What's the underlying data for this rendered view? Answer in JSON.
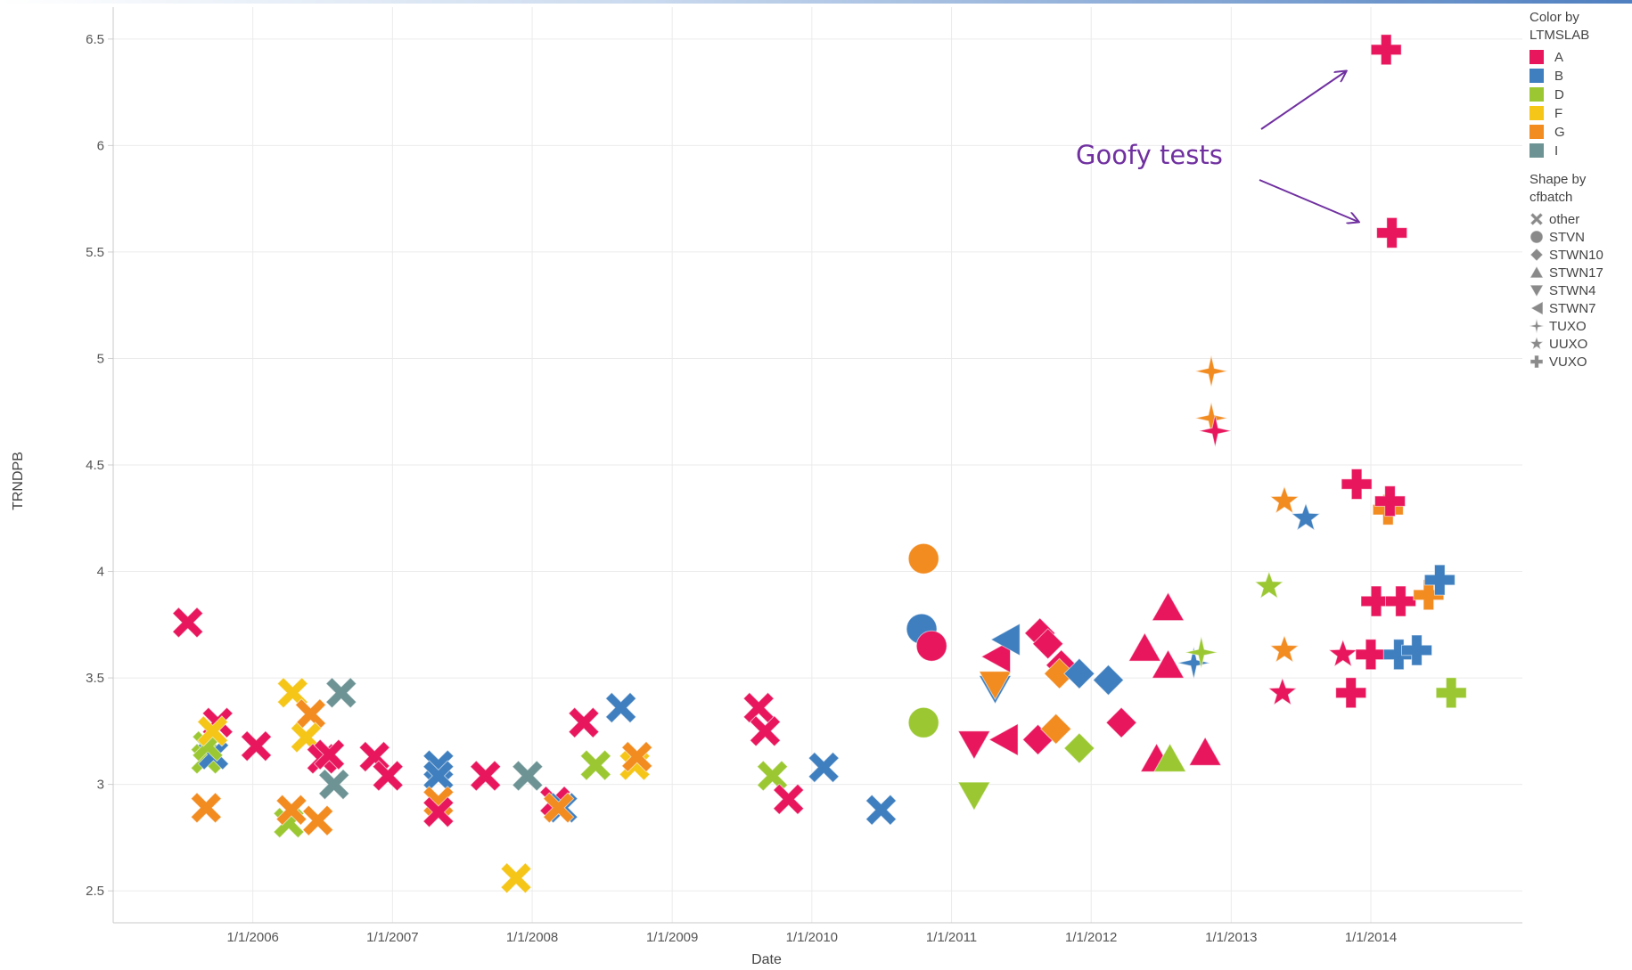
{
  "chart_data": {
    "type": "scatter",
    "xlabel": "Date",
    "ylabel": "TRNDPB",
    "xlim": [
      "2005-01-01",
      "2015-02-01"
    ],
    "ylim": [
      2.35,
      6.65
    ],
    "x_ticks": [
      "1/1/2006",
      "1/1/2007",
      "1/1/2008",
      "1/1/2009",
      "1/1/2010",
      "1/1/2011",
      "1/1/2012",
      "1/1/2013",
      "1/1/2014"
    ],
    "y_ticks": [
      "2.5",
      "3",
      "3.5",
      "4",
      "4.5",
      "5",
      "5.5",
      "6",
      "6.5"
    ],
    "grid": true,
    "color_legend": {
      "title": "Color by LTMSLAB",
      "items": [
        {
          "label": "A",
          "color": "#e8175d"
        },
        {
          "label": "B",
          "color": "#3f7fbf"
        },
        {
          "label": "D",
          "color": "#9bc832"
        },
        {
          "label": "F",
          "color": "#f5c518"
        },
        {
          "label": "G",
          "color": "#f28b20"
        },
        {
          "label": "I",
          "color": "#6d9394"
        }
      ]
    },
    "shape_legend": {
      "title": "Shape by cfbatch",
      "items": [
        {
          "label": "other",
          "shape": "x"
        },
        {
          "label": "STVN",
          "shape": "circle"
        },
        {
          "label": "STWN10",
          "shape": "diamond"
        },
        {
          "label": "STWN17",
          "shape": "triangle-up"
        },
        {
          "label": "STWN4",
          "shape": "triangle-down"
        },
        {
          "label": "STWN7",
          "shape": "triangle-left"
        },
        {
          "label": "TUXO",
          "shape": "star4"
        },
        {
          "label": "UUXO",
          "shape": "star"
        },
        {
          "label": "VUXO",
          "shape": "plus"
        }
      ]
    },
    "points": [
      {
        "x": "2005-07-15",
        "y": 3.76,
        "lab": "A",
        "batch": "other"
      },
      {
        "x": "2005-09-01",
        "y": 3.12,
        "lab": "D",
        "batch": "other"
      },
      {
        "x": "2005-09-20",
        "y": 3.14,
        "lab": "B",
        "batch": "other"
      },
      {
        "x": "2005-09-05",
        "y": 3.18,
        "lab": "D",
        "batch": "other"
      },
      {
        "x": "2005-10-01",
        "y": 3.29,
        "lab": "A",
        "batch": "other"
      },
      {
        "x": "2005-09-18",
        "y": 3.25,
        "lab": "F",
        "batch": "other"
      },
      {
        "x": "2005-09-01",
        "y": 2.89,
        "lab": "G",
        "batch": "other"
      },
      {
        "x": "2006-01-10",
        "y": 3.18,
        "lab": "A",
        "batch": "other"
      },
      {
        "x": "2006-04-15",
        "y": 3.43,
        "lab": "F",
        "batch": "other"
      },
      {
        "x": "2006-06-01",
        "y": 3.33,
        "lab": "G",
        "batch": "other"
      },
      {
        "x": "2006-05-20",
        "y": 3.22,
        "lab": "F",
        "batch": "other"
      },
      {
        "x": "2006-07-01",
        "y": 3.12,
        "lab": "A",
        "batch": "other"
      },
      {
        "x": "2006-07-20",
        "y": 3.14,
        "lab": "A",
        "batch": "other"
      },
      {
        "x": "2006-08-01",
        "y": 3.0,
        "lab": "I",
        "batch": "other"
      },
      {
        "x": "2006-08-20",
        "y": 3.43,
        "lab": "I",
        "batch": "other"
      },
      {
        "x": "2006-04-05",
        "y": 2.82,
        "lab": "D",
        "batch": "other"
      },
      {
        "x": "2006-04-12",
        "y": 2.88,
        "lab": "G",
        "batch": "other"
      },
      {
        "x": "2006-06-20",
        "y": 2.83,
        "lab": "G",
        "batch": "other"
      },
      {
        "x": "2006-11-15",
        "y": 3.13,
        "lab": "A",
        "batch": "other"
      },
      {
        "x": "2006-12-20",
        "y": 3.04,
        "lab": "A",
        "batch": "other"
      },
      {
        "x": "2007-05-01",
        "y": 3.09,
        "lab": "B",
        "batch": "other"
      },
      {
        "x": "2007-05-01",
        "y": 3.04,
        "lab": "B",
        "batch": "other"
      },
      {
        "x": "2007-05-01",
        "y": 2.92,
        "lab": "G",
        "batch": "other"
      },
      {
        "x": "2007-05-01",
        "y": 2.87,
        "lab": "A",
        "batch": "other"
      },
      {
        "x": "2007-09-01",
        "y": 3.04,
        "lab": "A",
        "batch": "other"
      },
      {
        "x": "2007-11-20",
        "y": 2.56,
        "lab": "F",
        "batch": "other"
      },
      {
        "x": "2007-12-20",
        "y": 3.04,
        "lab": "I",
        "batch": "other"
      },
      {
        "x": "2008-03-01",
        "y": 2.92,
        "lab": "A",
        "batch": "other"
      },
      {
        "x": "2008-03-20",
        "y": 2.89,
        "lab": "B",
        "batch": "other"
      },
      {
        "x": "2008-03-10",
        "y": 2.89,
        "lab": "G",
        "batch": "other"
      },
      {
        "x": "2008-05-15",
        "y": 3.29,
        "lab": "A",
        "batch": "other"
      },
      {
        "x": "2008-06-15",
        "y": 3.09,
        "lab": "D",
        "batch": "other"
      },
      {
        "x": "2008-08-20",
        "y": 3.36,
        "lab": "B",
        "batch": "other"
      },
      {
        "x": "2008-09-25",
        "y": 3.09,
        "lab": "F",
        "batch": "other"
      },
      {
        "x": "2008-10-01",
        "y": 3.13,
        "lab": "G",
        "batch": "other"
      },
      {
        "x": "2009-08-15",
        "y": 3.36,
        "lab": "A",
        "batch": "other"
      },
      {
        "x": "2009-09-01",
        "y": 3.25,
        "lab": "A",
        "batch": "other"
      },
      {
        "x": "2009-09-20",
        "y": 3.04,
        "lab": "D",
        "batch": "other"
      },
      {
        "x": "2009-11-01",
        "y": 2.93,
        "lab": "A",
        "batch": "other"
      },
      {
        "x": "2010-02-01",
        "y": 3.08,
        "lab": "B",
        "batch": "other"
      },
      {
        "x": "2010-07-01",
        "y": 2.88,
        "lab": "B",
        "batch": "other"
      },
      {
        "x": "2010-10-20",
        "y": 4.06,
        "lab": "G",
        "batch": "STVN"
      },
      {
        "x": "2010-10-15",
        "y": 3.73,
        "lab": "B",
        "batch": "STVN"
      },
      {
        "x": "2010-11-10",
        "y": 3.65,
        "lab": "A",
        "batch": "STVN"
      },
      {
        "x": "2010-10-20",
        "y": 3.29,
        "lab": "D",
        "batch": "STVN"
      },
      {
        "x": "2011-03-01",
        "y": 3.19,
        "lab": "A",
        "batch": "STWN4"
      },
      {
        "x": "2011-03-01",
        "y": 2.95,
        "lab": "D",
        "batch": "STWN4"
      },
      {
        "x": "2011-04-25",
        "y": 3.45,
        "lab": "B",
        "batch": "STWN4"
      },
      {
        "x": "2011-04-25",
        "y": 3.47,
        "lab": "G",
        "batch": "STWN4"
      },
      {
        "x": "2011-04-25",
        "y": 3.6,
        "lab": "A",
        "batch": "STWN7"
      },
      {
        "x": "2011-05-20",
        "y": 3.68,
        "lab": "B",
        "batch": "STWN7"
      },
      {
        "x": "2011-05-15",
        "y": 3.21,
        "lab": "A",
        "batch": "STWN7"
      },
      {
        "x": "2011-08-15",
        "y": 3.21,
        "lab": "A",
        "batch": "STWN10"
      },
      {
        "x": "2011-08-20",
        "y": 3.71,
        "lab": "A",
        "batch": "STWN10"
      },
      {
        "x": "2011-09-10",
        "y": 3.66,
        "lab": "A",
        "batch": "STWN10"
      },
      {
        "x": "2011-10-15",
        "y": 3.56,
        "lab": "A",
        "batch": "STWN10"
      },
      {
        "x": "2011-10-01",
        "y": 3.26,
        "lab": "G",
        "batch": "STWN10"
      },
      {
        "x": "2011-10-10",
        "y": 3.52,
        "lab": "G",
        "batch": "STWN10"
      },
      {
        "x": "2011-12-01",
        "y": 3.52,
        "lab": "B",
        "batch": "STWN10"
      },
      {
        "x": "2011-12-01",
        "y": 3.17,
        "lab": "D",
        "batch": "STWN10"
      },
      {
        "x": "2012-02-15",
        "y": 3.49,
        "lab": "B",
        "batch": "STWN10"
      },
      {
        "x": "2012-03-20",
        "y": 3.29,
        "lab": "A",
        "batch": "STWN10"
      },
      {
        "x": "2012-05-20",
        "y": 3.64,
        "lab": "A",
        "batch": "STWN17"
      },
      {
        "x": "2012-07-20",
        "y": 3.83,
        "lab": "A",
        "batch": "STWN17"
      },
      {
        "x": "2012-07-20",
        "y": 3.56,
        "lab": "A",
        "batch": "STWN17"
      },
      {
        "x": "2012-06-20",
        "y": 3.12,
        "lab": "A",
        "batch": "STWN17"
      },
      {
        "x": "2012-07-25",
        "y": 3.12,
        "lab": "D",
        "batch": "STWN17"
      },
      {
        "x": "2012-10-25",
        "y": 3.15,
        "lab": "A",
        "batch": "STWN17"
      },
      {
        "x": "2012-09-25",
        "y": 3.57,
        "lab": "B",
        "batch": "TUXO"
      },
      {
        "x": "2012-10-15",
        "y": 3.62,
        "lab": "D",
        "batch": "TUXO"
      },
      {
        "x": "2012-11-10",
        "y": 4.94,
        "lab": "G",
        "batch": "TUXO"
      },
      {
        "x": "2012-11-10",
        "y": 4.72,
        "lab": "G",
        "batch": "TUXO"
      },
      {
        "x": "2012-11-20",
        "y": 4.66,
        "lab": "A",
        "batch": "TUXO"
      },
      {
        "x": "2013-04-10",
        "y": 3.93,
        "lab": "D",
        "batch": "UUXO"
      },
      {
        "x": "2013-05-20",
        "y": 4.33,
        "lab": "G",
        "batch": "UUXO"
      },
      {
        "x": "2013-07-15",
        "y": 4.25,
        "lab": "B",
        "batch": "UUXO"
      },
      {
        "x": "2013-05-20",
        "y": 3.63,
        "lab": "G",
        "batch": "UUXO"
      },
      {
        "x": "2013-05-15",
        "y": 3.43,
        "lab": "A",
        "batch": "UUXO"
      },
      {
        "x": "2013-10-20",
        "y": 3.61,
        "lab": "A",
        "batch": "UUXO"
      },
      {
        "x": "2013-11-25",
        "y": 4.41,
        "lab": "A",
        "batch": "VUXO"
      },
      {
        "x": "2013-11-10",
        "y": 3.43,
        "lab": "A",
        "batch": "VUXO"
      },
      {
        "x": "2014-01-01",
        "y": 3.61,
        "lab": "A",
        "batch": "VUXO"
      },
      {
        "x": "2014-01-15",
        "y": 3.86,
        "lab": "A",
        "batch": "VUXO"
      },
      {
        "x": "2014-02-15",
        "y": 4.29,
        "lab": "G",
        "batch": "VUXO"
      },
      {
        "x": "2014-02-20",
        "y": 4.33,
        "lab": "A",
        "batch": "VUXO"
      },
      {
        "x": "2014-03-20",
        "y": 3.86,
        "lab": "A",
        "batch": "VUXO"
      },
      {
        "x": "2014-03-15",
        "y": 3.61,
        "lab": "B",
        "batch": "VUXO"
      },
      {
        "x": "2014-05-01",
        "y": 3.63,
        "lab": "B",
        "batch": "VUXO"
      },
      {
        "x": "2014-06-01",
        "y": 3.89,
        "lab": "G",
        "batch": "VUXO"
      },
      {
        "x": "2014-06-30",
        "y": 3.96,
        "lab": "B",
        "batch": "VUXO"
      },
      {
        "x": "2014-07-30",
        "y": 3.43,
        "lab": "D",
        "batch": "VUXO"
      },
      {
        "x": "2014-02-10",
        "y": 6.45,
        "lab": "A",
        "batch": "VUXO"
      },
      {
        "x": "2014-02-25",
        "y": 5.59,
        "lab": "A",
        "batch": "VUXO"
      }
    ],
    "annotations": [
      {
        "text": "Goofy tests",
        "color": "#7030a0"
      }
    ]
  }
}
